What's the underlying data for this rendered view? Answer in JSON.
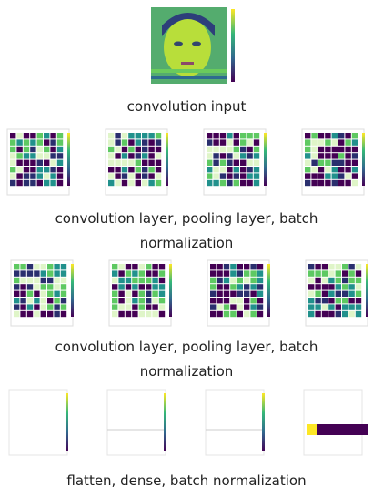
{
  "sections": [
    {
      "caption": "convolution input"
    },
    {
      "caption": "convolution layer, pooling layer, batch normalization"
    },
    {
      "caption": "convolution layer, pooling layer, batch normalization"
    },
    {
      "caption": "flatten, dense, batch normalization"
    }
  ]
}
